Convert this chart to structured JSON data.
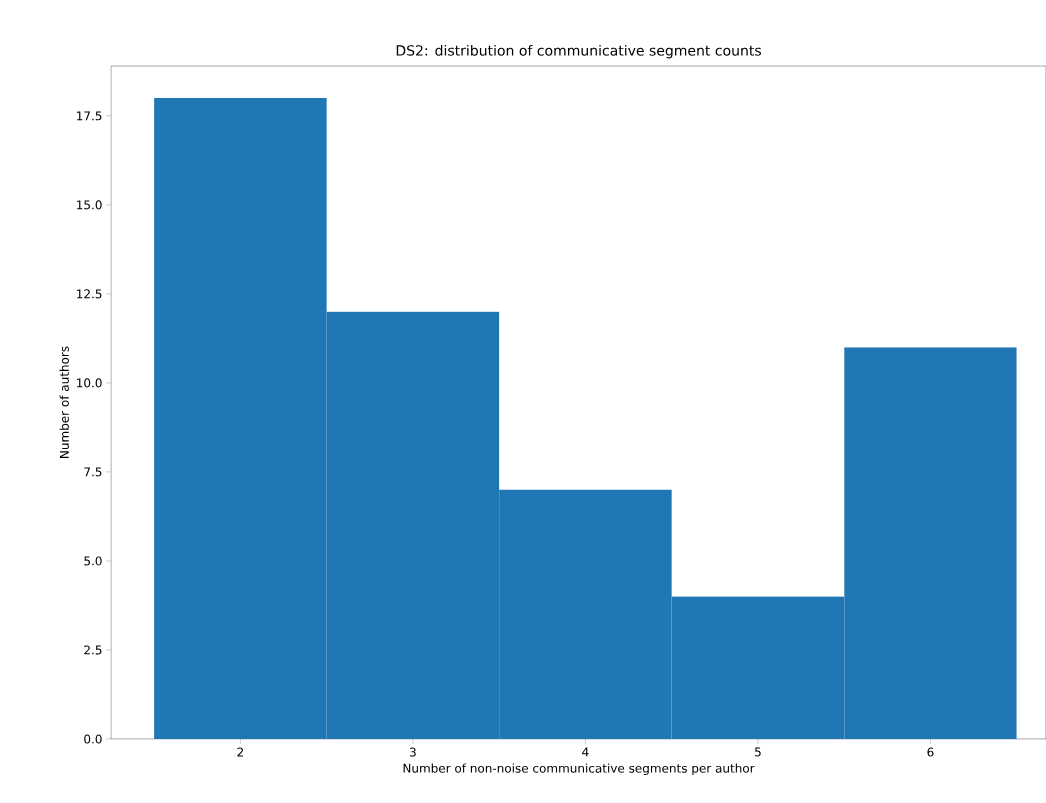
{
  "chart_data": {
    "type": "histogram",
    "title": "DS2: distribution of communicative segment counts",
    "xlabel": "Number of non-noise communicative segments per author",
    "ylabel": "Number of authors",
    "bins": [
      1.5,
      2.5,
      3.5,
      4.5,
      5.5,
      6.5
    ],
    "values": [
      18,
      12,
      7,
      4,
      11
    ],
    "color": "#1f77b4",
    "xlim": [
      1.25,
      6.67
    ],
    "ylim": [
      0,
      18.9
    ],
    "xticks": [
      2,
      3,
      4,
      5,
      6
    ],
    "yticks": [
      {
        "value": 0,
        "label": "0.0"
      },
      {
        "value": 2.5,
        "label": "2.5"
      },
      {
        "value": 5,
        "label": "5.0"
      },
      {
        "value": 7.5,
        "label": "7.5"
      },
      {
        "value": 10,
        "label": "10.0"
      },
      {
        "value": 12.5,
        "label": "12.5"
      },
      {
        "value": 15,
        "label": "15.0"
      },
      {
        "value": 17.5,
        "label": "17.5"
      }
    ]
  }
}
